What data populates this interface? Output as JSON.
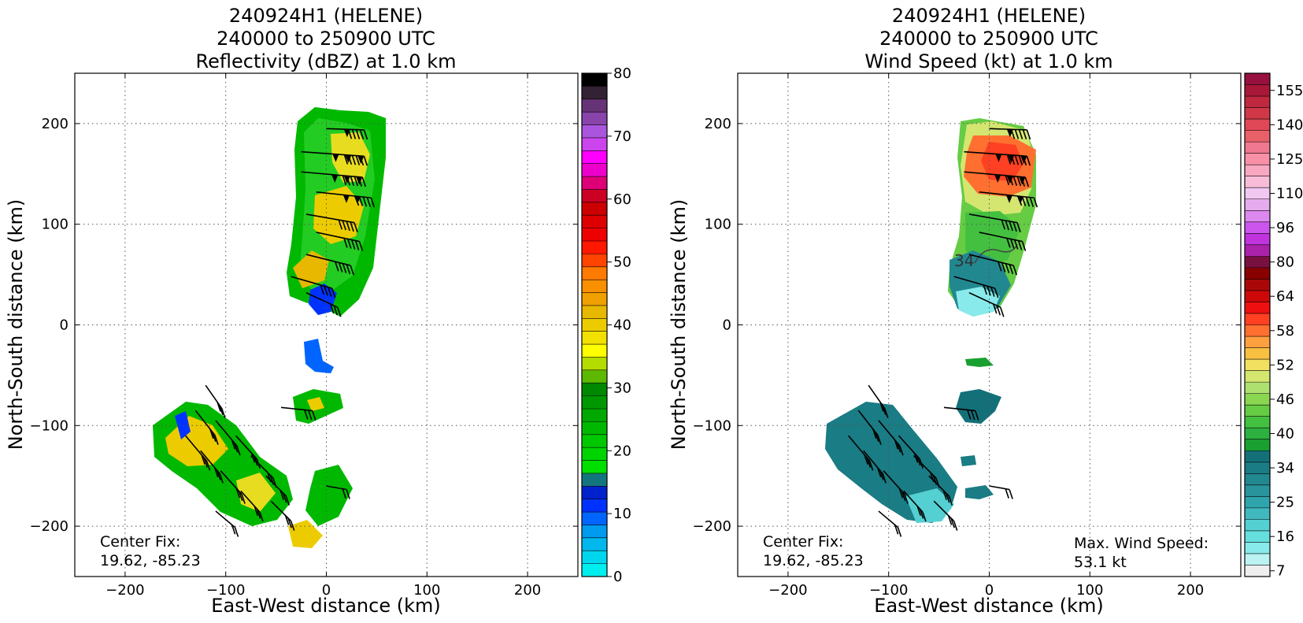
{
  "chart_data": [
    {
      "type": "heatmap",
      "title_lines": [
        "240924H1 (HELENE)",
        "240000 to 250900 UTC",
        "Reflectivity (dBZ) at 1.0 km"
      ],
      "xlabel": "East-West distance (km)",
      "ylabel": "North-South distance (km)",
      "xlim": [
        -250,
        250
      ],
      "ylim": [
        -250,
        250
      ],
      "xticks": [
        -200,
        -100,
        0,
        100,
        200
      ],
      "yticks": [
        -200,
        -100,
        0,
        100,
        200
      ],
      "grid": true,
      "annotations": [
        {
          "lines": [
            "Center Fix:",
            "19.62, -85.23"
          ],
          "x": -225,
          "y": -225
        }
      ],
      "colorbar": {
        "label_values": [
          0,
          10,
          20,
          30,
          40,
          50,
          60,
          70,
          80
        ],
        "levels": [
          0,
          2.5,
          5,
          7.5,
          10,
          12.5,
          15,
          17.5,
          20,
          22.5,
          25,
          27.5,
          30,
          32.5,
          35,
          37.5,
          40,
          42.5,
          45,
          47.5,
          50,
          52.5,
          55,
          57.5,
          60,
          62.5,
          65,
          67.5,
          70,
          72.5,
          75,
          77.5,
          80
        ],
        "colors": [
          "#00eeee",
          "#00d6ee",
          "#00b8ee",
          "#009aee",
          "#0064ff",
          "#0032ff",
          "#0022cc",
          "#13767e",
          "#00e000",
          "#00d400",
          "#00c800",
          "#00b800",
          "#00a800",
          "#009800",
          "#008800",
          "#5cb800",
          "#b4dc00",
          "#ffff00",
          "#f2e000",
          "#eccc00",
          "#e8b800",
          "#f0a000",
          "#f89000",
          "#ff7a00",
          "#ff4400",
          "#ff1800",
          "#ee0000",
          "#dd0000",
          "#cc0000",
          "#cc0022",
          "#dd0077",
          "#ee00cc",
          "#ff00ff",
          "#cc44ee",
          "#aa55dd",
          "#8844aa",
          "#663377",
          "#332233",
          "#000000"
        ]
      }
    },
    {
      "type": "heatmap",
      "title_lines": [
        "240924H1 (HELENE)",
        "240000 to 250900 UTC",
        "Wind Speed (kt) at 1.0 km"
      ],
      "xlabel": "East-West distance (km)",
      "ylabel": "North-South distance (km)",
      "xlim": [
        -250,
        250
      ],
      "ylim": [
        -250,
        250
      ],
      "xticks": [
        -200,
        -100,
        0,
        100,
        200
      ],
      "yticks": [
        -200,
        -100,
        0,
        100,
        200
      ],
      "grid": true,
      "contour_label": "34",
      "annotations": [
        {
          "lines": [
            "Center Fix:",
            "19.62, -85.23"
          ],
          "x": -225,
          "y": -225
        },
        {
          "lines": [
            "Max. Wind Speed:",
            "53.1 kt"
          ],
          "x": 85,
          "y": -225
        }
      ],
      "colorbar": {
        "label_values": [
          7,
          16,
          25,
          34,
          40,
          46,
          52,
          58,
          64,
          80,
          96,
          110,
          125,
          140,
          155
        ],
        "colors": [
          "#eeeeee",
          "#bbf2f2",
          "#88eaea",
          "#66dede",
          "#55d0d2",
          "#40b8be",
          "#30a4ac",
          "#2a949c",
          "#228890",
          "#1a7c84",
          "#147078",
          "#19a030",
          "#2cb040",
          "#44c040",
          "#66cc44",
          "#8ad650",
          "#aee070",
          "#d4e670",
          "#f2e060",
          "#f8c040",
          "#ffa040",
          "#ff7030",
          "#ff4022",
          "#ee1010",
          "#cc0808",
          "#aa0808",
          "#880000",
          "#781040",
          "#aa22aa",
          "#c033dd",
          "#cc55ee",
          "#dd88ee",
          "#e6aaee",
          "#f0c8f0",
          "#f8bcd8",
          "#f8a8c0",
          "#f890a8",
          "#f07890",
          "#e86068",
          "#e04858",
          "#d03848",
          "#c02840",
          "#a81838",
          "#981040"
        ]
      }
    }
  ]
}
